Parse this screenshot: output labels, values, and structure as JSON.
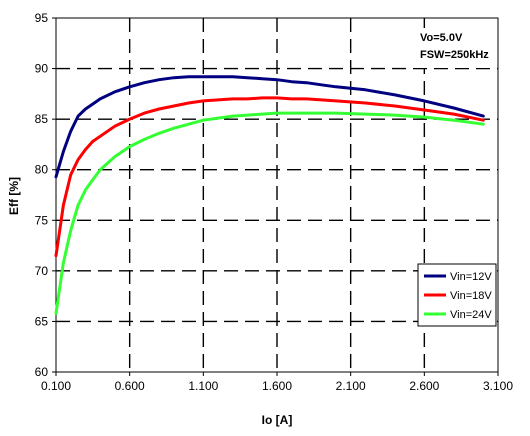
{
  "chart_data": {
    "type": "line",
    "xlabel": "Io [A]",
    "ylabel": "Eff [%]",
    "xlim": [
      0.1,
      3.1
    ],
    "ylim": [
      60,
      95
    ],
    "xticks": [
      "0.100",
      "0.600",
      "1.100",
      "1.600",
      "2.100",
      "2.600",
      "3.100"
    ],
    "yticks": [
      "60",
      "65",
      "70",
      "75",
      "80",
      "85",
      "90",
      "95"
    ],
    "grid": true,
    "legend_position": "right",
    "annotations": [
      "Vo=5.0V",
      "FSW=250kHz"
    ],
    "series": [
      {
        "name": "Vin=12V",
        "color": "#000080",
        "x": [
          0.1,
          0.15,
          0.2,
          0.25,
          0.3,
          0.35,
          0.4,
          0.5,
          0.6,
          0.7,
          0.8,
          0.9,
          1.0,
          1.1,
          1.2,
          1.3,
          1.4,
          1.5,
          1.6,
          1.7,
          1.8,
          1.9,
          2.0,
          2.2,
          2.4,
          2.6,
          2.8,
          3.0
        ],
        "y": [
          79.3,
          81.8,
          83.8,
          85.3,
          86.0,
          86.5,
          87.0,
          87.7,
          88.2,
          88.6,
          88.9,
          89.1,
          89.2,
          89.2,
          89.2,
          89.2,
          89.1,
          89.0,
          88.9,
          88.7,
          88.6,
          88.4,
          88.2,
          87.9,
          87.4,
          86.8,
          86.1,
          85.3
        ]
      },
      {
        "name": "Vin=18V",
        "color": "#ff0000",
        "x": [
          0.1,
          0.15,
          0.2,
          0.25,
          0.3,
          0.35,
          0.4,
          0.5,
          0.6,
          0.7,
          0.8,
          0.9,
          1.0,
          1.1,
          1.2,
          1.3,
          1.4,
          1.5,
          1.6,
          1.7,
          1.8,
          1.9,
          2.0,
          2.2,
          2.4,
          2.6,
          2.8,
          3.0
        ],
        "y": [
          71.5,
          76.5,
          79.5,
          81.0,
          82.0,
          82.8,
          83.3,
          84.3,
          85.0,
          85.6,
          86.0,
          86.3,
          86.6,
          86.8,
          86.9,
          87.0,
          87.0,
          87.1,
          87.1,
          87.0,
          87.0,
          86.9,
          86.8,
          86.6,
          86.3,
          85.9,
          85.5,
          84.9
        ]
      },
      {
        "name": "Vin=24V",
        "color": "#33ff33",
        "x": [
          0.1,
          0.15,
          0.2,
          0.25,
          0.3,
          0.35,
          0.4,
          0.5,
          0.6,
          0.7,
          0.8,
          0.9,
          1.0,
          1.1,
          1.2,
          1.3,
          1.4,
          1.5,
          1.6,
          1.7,
          1.8,
          1.9,
          2.0,
          2.2,
          2.4,
          2.6,
          2.8,
          3.0
        ],
        "y": [
          65.8,
          70.8,
          74.0,
          76.5,
          78.0,
          79.0,
          80.0,
          81.3,
          82.3,
          83.0,
          83.6,
          84.1,
          84.5,
          84.9,
          85.1,
          85.3,
          85.4,
          85.5,
          85.6,
          85.6,
          85.6,
          85.6,
          85.6,
          85.5,
          85.4,
          85.2,
          84.9,
          84.5
        ]
      }
    ]
  }
}
